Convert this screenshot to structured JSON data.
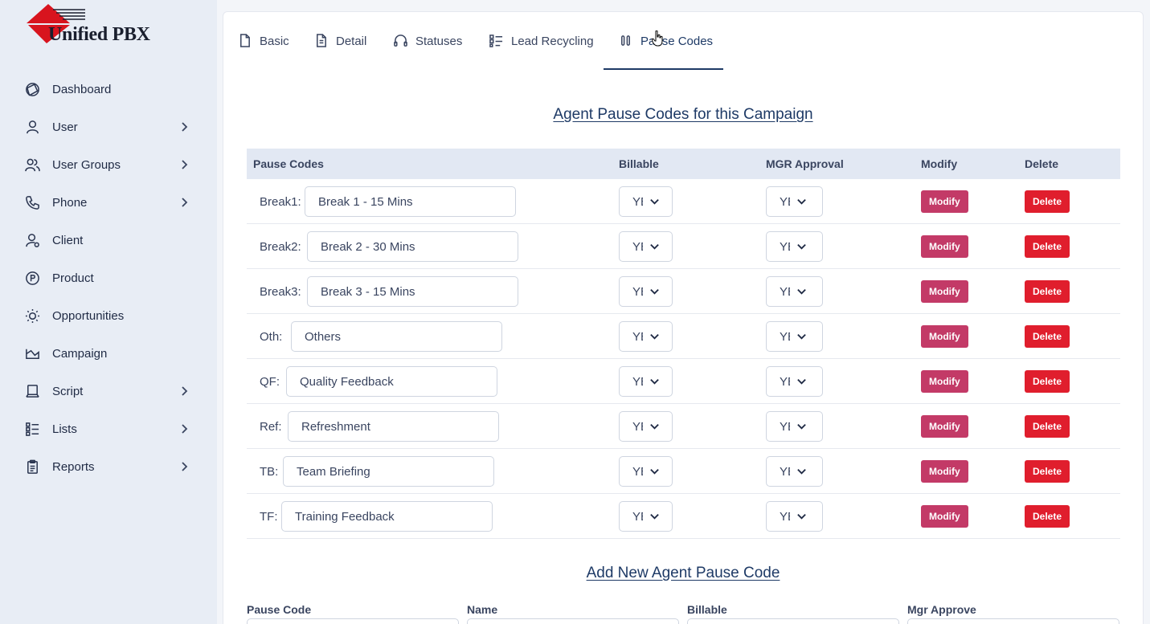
{
  "app": {
    "logo_text": "Unified PBX"
  },
  "sidebar": {
    "items": [
      {
        "label": "Dashboard",
        "icon": "dashboard-icon",
        "has_submenu": false
      },
      {
        "label": "User",
        "icon": "user-icon",
        "has_submenu": true
      },
      {
        "label": "User Groups",
        "icon": "user-groups-icon",
        "has_submenu": true
      },
      {
        "label": "Phone",
        "icon": "phone-icon",
        "has_submenu": true
      },
      {
        "label": "Client",
        "icon": "client-icon",
        "has_submenu": false
      },
      {
        "label": "Product",
        "icon": "product-icon",
        "has_submenu": false
      },
      {
        "label": "Opportunities",
        "icon": "lightbulb-icon",
        "has_submenu": false
      },
      {
        "label": "Campaign",
        "icon": "campaign-icon",
        "has_submenu": false
      },
      {
        "label": "Script",
        "icon": "script-icon",
        "has_submenu": true
      },
      {
        "label": "Lists",
        "icon": "lists-icon",
        "has_submenu": true
      },
      {
        "label": "Reports",
        "icon": "reports-icon",
        "has_submenu": true
      }
    ]
  },
  "tabs": [
    {
      "label": "Basic",
      "icon": "file-icon"
    },
    {
      "label": "Detail",
      "icon": "file-text-icon"
    },
    {
      "label": "Statuses",
      "icon": "headset-icon"
    },
    {
      "label": "Lead Recycling",
      "icon": "list-check-icon"
    },
    {
      "label": "Pause Codes",
      "icon": "pause-icon",
      "active": true
    }
  ],
  "pause_section": {
    "title": "Agent Pause Codes for this Campaign",
    "columns": {
      "code": "Pause Codes",
      "billable": "Billable",
      "mgr": "MGR Approval",
      "modify": "Modify",
      "delete": "Delete"
    },
    "rows": [
      {
        "code": "Break1:",
        "name": "Break 1 - 15 Mins",
        "billable": "YES",
        "mgr": "YES"
      },
      {
        "code": "Break2:",
        "name": "Break 2 - 30 Mins",
        "billable": "YES",
        "mgr": "YES"
      },
      {
        "code": "Break3:",
        "name": "Break 3 - 15 Mins",
        "billable": "YES",
        "mgr": "YES"
      },
      {
        "code": "Oth:",
        "name": "Others",
        "billable": "YES",
        "mgr": "YES"
      },
      {
        "code": "QF:",
        "name": "Quality Feedback",
        "billable": "YES",
        "mgr": "YES"
      },
      {
        "code": "Ref:",
        "name": "Refreshment",
        "billable": "YES",
        "mgr": "YES"
      },
      {
        "code": "TB:",
        "name": "Team Briefing",
        "billable": "YES",
        "mgr": "YES"
      },
      {
        "code": "TF:",
        "name": "Training Feedback",
        "billable": "YES",
        "mgr": "YES"
      }
    ],
    "modify_label": "Modify",
    "delete_label": "Delete"
  },
  "add_section": {
    "title": "Add New Agent Pause Code",
    "labels": {
      "code": "Pause Code",
      "name": "Name",
      "billable": "Billable",
      "mgr": "Mgr Approve"
    }
  },
  "colors": {
    "accent": "#1e3a66",
    "modify": "#c33a67",
    "delete": "#e01e2d",
    "header_bg": "#e2e8f3",
    "sidebar_bg": "#e8edf5"
  }
}
